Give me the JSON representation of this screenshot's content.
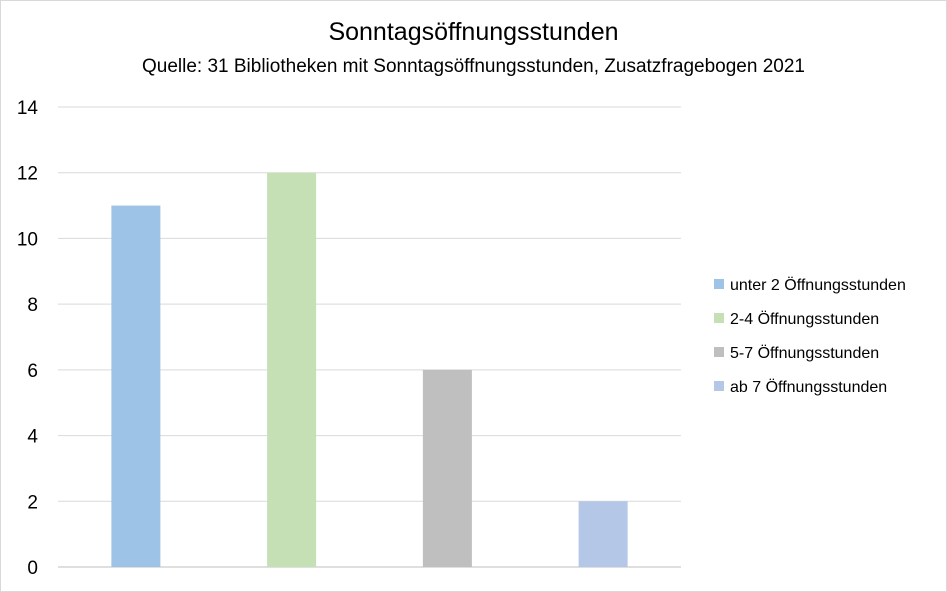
{
  "chart_data": {
    "type": "bar",
    "title": "Sonntagsöffnungsstunden",
    "subtitle": "Quelle: 31 Bibliotheken mit Sonntagsöffnungsstunden, Zusatzfragebogen 2021",
    "xlabel": "",
    "ylabel": "",
    "ylim": [
      0,
      14
    ],
    "yticks": [
      0,
      2,
      4,
      6,
      8,
      10,
      12,
      14
    ],
    "grid": true,
    "legend_position": "right",
    "series": [
      {
        "name": "unter 2 Öffnungsstunden",
        "value": 11,
        "color": "#9dc3e6"
      },
      {
        "name": "2-4 Öffnungsstunden",
        "value": 12,
        "color": "#c5e0b4"
      },
      {
        "name": "5-7 Öffnungsstunden",
        "value": 6,
        "color": "#bfbfbf"
      },
      {
        "name": "ab 7 Öffnungsstunden",
        "value": 2,
        "color": "#b4c7e7"
      }
    ]
  }
}
